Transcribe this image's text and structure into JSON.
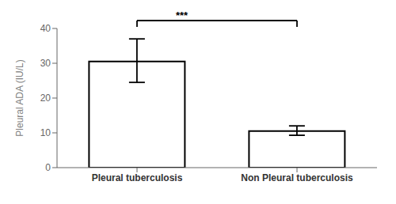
{
  "chart_data": {
    "type": "bar",
    "categories": [
      "Pleural tuberculosis",
      "Non Pleural tuberculosis"
    ],
    "values": [
      30.5,
      10.5
    ],
    "errors_upper": [
      6.5,
      1.5
    ],
    "errors_lower": [
      6.0,
      1.2
    ],
    "color": "#ffffff",
    "ylabel": "Pleural ADA (IU/L)",
    "ylim": [
      0,
      40
    ],
    "yticks": [
      0,
      10,
      20,
      30,
      40
    ],
    "annotation": "***"
  }
}
